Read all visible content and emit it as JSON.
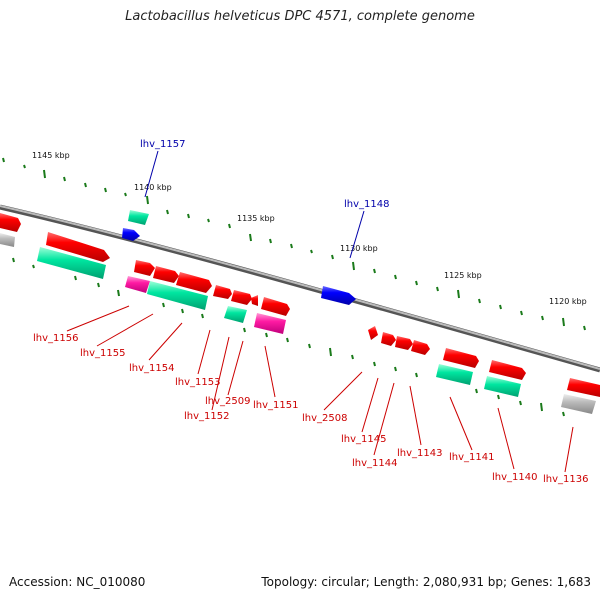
{
  "title": "Lactobacillus helveticus DPC 4571, complete genome",
  "footer": {
    "accession": "Accession: NC_010080",
    "summary": "Topology: circular; Length: 2,080,931 bp; Genes: 1,683"
  },
  "colors": {
    "backbone": "#888888",
    "cds": "#ff0000",
    "rna": "#0000ff",
    "teal": "#00e6a0",
    "magenta": "#ff1aa3",
    "grey": "#bbbbbb",
    "gc_tick": "#1a7a1a",
    "label_red": "#cc0000",
    "label_blue": "#0000aa"
  },
  "scale_labels": [
    "1145 kbp",
    "1140 kbp",
    "1135 kbp",
    "1130 kbp",
    "1125 kbp",
    "1120 kbp"
  ],
  "gene_labels": {
    "top": [
      "lhv_1157",
      "lhv_1148"
    ],
    "bottom": [
      "lhv_1156",
      "lhv_1155",
      "lhv_1154",
      "lhv_1153",
      "lhv_2509",
      "lhv_1152",
      "lhv_1151",
      "lhv_2508",
      "lhv_1145",
      "lhv_1144",
      "lhv_1143",
      "lhv_1141",
      "lhv_1140",
      "lhv_1136"
    ]
  }
}
